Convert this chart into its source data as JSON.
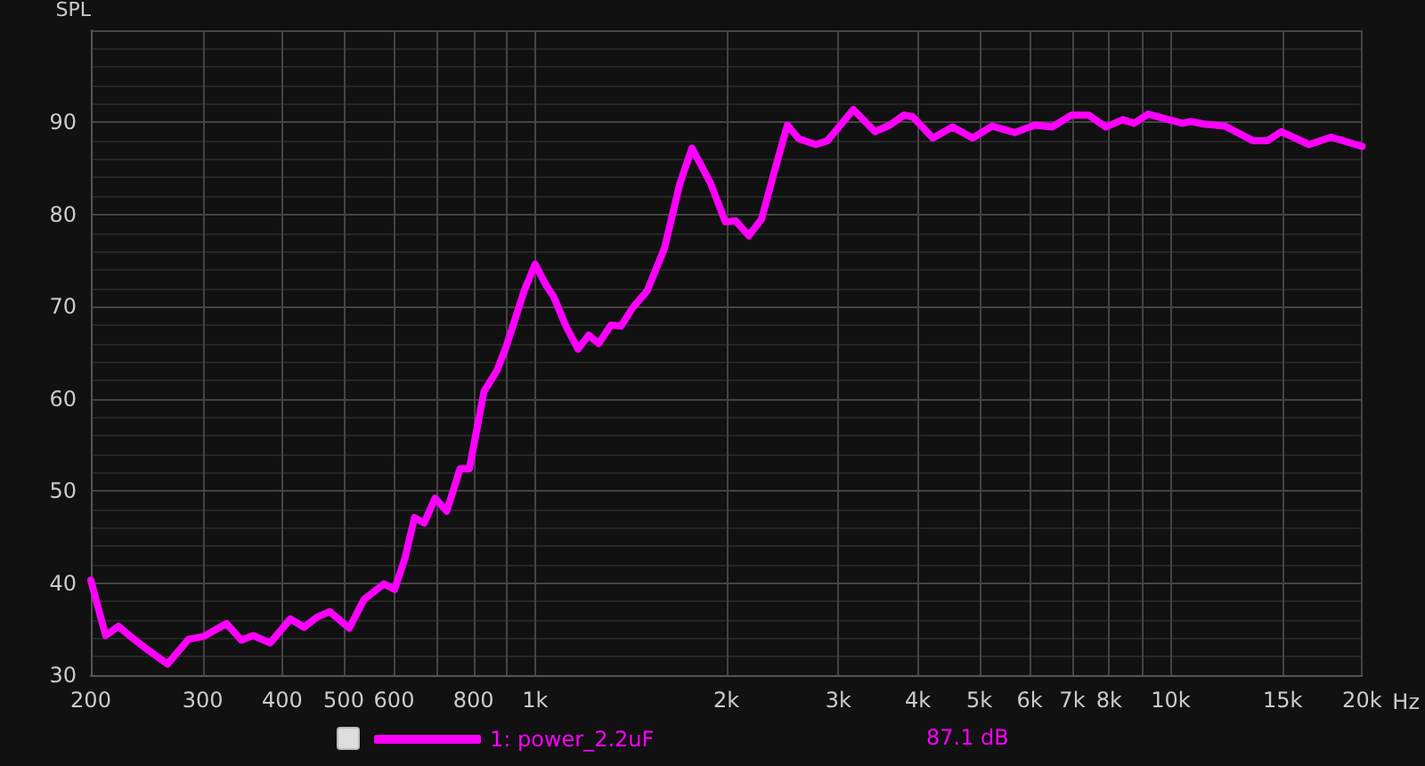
{
  "chart_data": {
    "type": "line",
    "ylabel": "SPL",
    "log": "x",
    "xlim": [
      200,
      20000
    ],
    "ylim": [
      30,
      100
    ],
    "xticks": [
      200,
      300,
      400,
      500,
      600,
      {
        "value": 700,
        "label": null
      },
      800,
      {
        "value": 900,
        "label": null
      },
      {
        "value": 1000,
        "label": "1k"
      },
      {
        "value": 2000,
        "label": "2k"
      },
      {
        "value": 3000,
        "label": "3k"
      },
      {
        "value": 4000,
        "label": "4k"
      },
      {
        "value": 5000,
        "label": "5k"
      },
      {
        "value": 6000,
        "label": "6k"
      },
      {
        "value": 7000,
        "label": "7k"
      },
      {
        "value": 8000,
        "label": "8k"
      },
      {
        "value": 9000,
        "label": null
      },
      {
        "value": 10000,
        "label": "10k"
      },
      {
        "value": 15000,
        "label": "15k"
      },
      {
        "value": 20000,
        "label": "20k"
      }
    ],
    "xlabel": "Hz",
    "yticks": [
      30,
      40,
      50,
      60,
      70,
      80,
      90,
      {
        "value": 100,
        "label": null
      }
    ],
    "grid": true,
    "legend": "bottom",
    "marker": "none",
    "line_style": "solid",
    "annotations": [
      "87.1 dB"
    ],
    "series": [
      {
        "name": "1: power_2.2uF",
        "color": "#ff00ff",
        "x": [
          200,
          211,
          221,
          230,
          243,
          264,
          285,
          301,
          327,
          345,
          360,
          383,
          412,
          433,
          454,
          475,
          510,
          538,
          578,
          601,
          624,
          646,
          669,
          696,
          726,
          762,
          788,
          831,
          870,
          900,
          961,
          1000,
          1039,
          1069,
          1118,
          1168,
          1214,
          1259,
          1316,
          1366,
          1421,
          1500,
          1597,
          1690,
          1765,
          1888,
          1992,
          2068,
          2169,
          2271,
          2393,
          2494,
          2601,
          2765,
          2883,
          3167,
          3425,
          3613,
          3808,
          3929,
          4224,
          4538,
          4878,
          5236,
          5688,
          6114,
          6505,
          6985,
          7428,
          7902,
          8403,
          8756,
          9216,
          9804,
          10431,
          10757,
          11323,
          12170,
          13486,
          14184,
          14929,
          16510,
          17878,
          20000
        ],
        "values": [
          40.3,
          34.3,
          35.3,
          34.3,
          33.0,
          31.2,
          33.9,
          34.2,
          35.6,
          33.8,
          34.3,
          33.5,
          36.1,
          35.2,
          36.3,
          36.9,
          35.1,
          38.2,
          39.9,
          39.3,
          42.7,
          47.1,
          46.5,
          49.2,
          47.8,
          52.4,
          52.4,
          60.8,
          63.0,
          65.6,
          71.7,
          74.6,
          72.4,
          71.1,
          67.9,
          65.4,
          66.9,
          66.0,
          68.0,
          67.9,
          69.8,
          71.7,
          76.3,
          83.4,
          87.2,
          83.4,
          79.2,
          79.3,
          77.7,
          79.5,
          85.3,
          89.7,
          88.2,
          87.6,
          88.0,
          91.4,
          89.0,
          89.7,
          90.8,
          90.6,
          88.3,
          89.5,
          88.3,
          89.6,
          88.9,
          89.7,
          89.5,
          90.8,
          90.8,
          89.5,
          90.3,
          89.9,
          90.9,
          90.4,
          89.9,
          90.1,
          89.8,
          89.6,
          88.0,
          88.0,
          89.0,
          87.6,
          88.4,
          87.4
        ]
      }
    ]
  }
}
